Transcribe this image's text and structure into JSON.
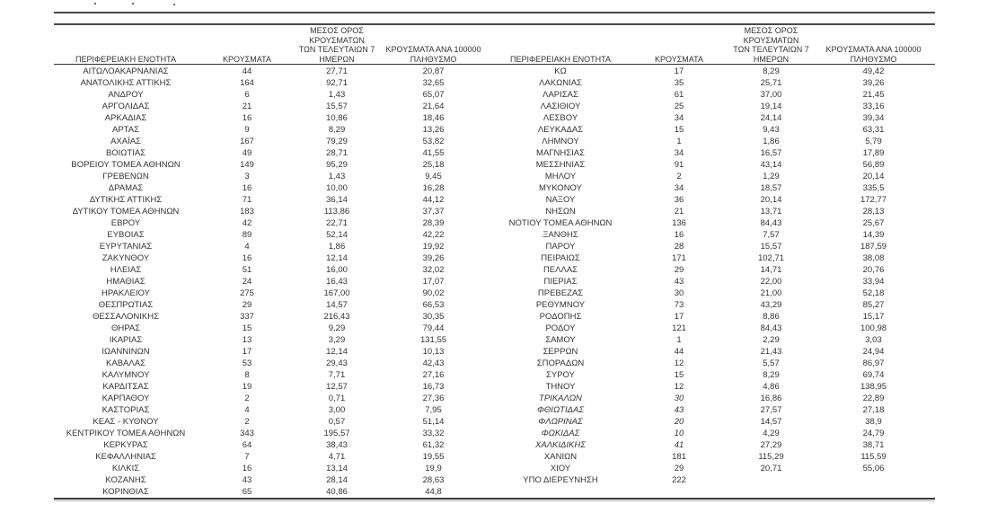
{
  "page": {
    "background": "#ffffff",
    "text_color": "#333333",
    "rule_color": "#4a4a4a"
  },
  "header": {
    "col_region": "ΠΕΡΙΦΕΡΕΙΑΚΗ ΕΝΟΤΗΤΑ",
    "col_cases": "ΚΡΟΥΣΜΑΤΑ",
    "col_avg7_lines": [
      "ΜΕΣΟΣ ΟΡΟΣ ΚΡΟΥΣΜΑΤΩΝ",
      "ΤΩΝ ΤΕΛΕΥΤΑΙΩΝ 7",
      "ΗΜΕΡΩΝ"
    ],
    "col_per100k_lines": [
      "ΚΡΟΥΣΜΑΤΑ ΑΝΑ 100000",
      "ΠΛΗΘΥΣΜΟ"
    ]
  },
  "left_table": {
    "rows": [
      {
        "region": "ΑΙΤΩΛΟΑΚΑΡΝΑΝΙΑΣ",
        "cases": "44",
        "avg7": "27,71",
        "per100k": "20,87"
      },
      {
        "region": "ΑΝΑΤΟΛΙΚΗΣ ΑΤΤΙΚΗΣ",
        "cases": "164",
        "avg7": "92,71",
        "per100k": "32,65"
      },
      {
        "region": "ΑΝΔΡΟΥ",
        "cases": "6",
        "avg7": "1,43",
        "per100k": "65,07"
      },
      {
        "region": "ΑΡΓΟΛΙΔΑΣ",
        "cases": "21",
        "avg7": "15,57",
        "per100k": "21,64"
      },
      {
        "region": "ΑΡΚΑΔΙΑΣ",
        "cases": "16",
        "avg7": "10,86",
        "per100k": "18,46"
      },
      {
        "region": "ΑΡΤΑΣ",
        "cases": "9",
        "avg7": "8,29",
        "per100k": "13,26"
      },
      {
        "region": "ΑΧΑΪΑΣ",
        "cases": "167",
        "avg7": "79,29",
        "per100k": "53,82"
      },
      {
        "region": "ΒΟΙΩΤΙΑΣ",
        "cases": "49",
        "avg7": "28,71",
        "per100k": "41,55"
      },
      {
        "region": "ΒΟΡΕΙΟΥ ΤΟΜΕΑ ΑΘΗΝΩΝ",
        "cases": "149",
        "avg7": "95,29",
        "per100k": "25,18"
      },
      {
        "region": "ΓΡΕΒΕΝΩΝ",
        "cases": "3",
        "avg7": "1,43",
        "per100k": "9,45"
      },
      {
        "region": "ΔΡΑΜΑΣ",
        "cases": "16",
        "avg7": "10,00",
        "per100k": "16,28"
      },
      {
        "region": "ΔΥΤΙΚΗΣ ΑΤΤΙΚΗΣ",
        "cases": "71",
        "avg7": "36,14",
        "per100k": "44,12"
      },
      {
        "region": "ΔΥΤΙΚΟΥ ΤΟΜΕΑ ΑΘΗΝΩΝ",
        "cases": "183",
        "avg7": "113,86",
        "per100k": "37,37"
      },
      {
        "region": "ΕΒΡΟΥ",
        "cases": "42",
        "avg7": "22,71",
        "per100k": "28,39"
      },
      {
        "region": "ΕΥΒΟΙΑΣ",
        "cases": "89",
        "avg7": "52,14",
        "per100k": "42,22"
      },
      {
        "region": "ΕΥΡΥΤΑΝΙΑΣ",
        "cases": "4",
        "avg7": "1,86",
        "per100k": "19,92"
      },
      {
        "region": "ΖΑΚΥΝΘΟΥ",
        "cases": "16",
        "avg7": "12,14",
        "per100k": "39,26"
      },
      {
        "region": "ΗΛΕΙΑΣ",
        "cases": "51",
        "avg7": "16,00",
        "per100k": "32,02"
      },
      {
        "region": "ΗΜΑΘΙΑΣ",
        "cases": "24",
        "avg7": "16,43",
        "per100k": "17,07"
      },
      {
        "region": "ΗΡΑΚΛΕΙΟΥ",
        "cases": "275",
        "avg7": "167,00",
        "per100k": "90,02"
      },
      {
        "region": "ΘΕΣΠΡΩΤΙΑΣ",
        "cases": "29",
        "avg7": "14,57",
        "per100k": "66,53"
      },
      {
        "region": "ΘΕΣΣΑΛΟΝΙΚΗΣ",
        "cases": "337",
        "avg7": "216,43",
        "per100k": "30,35"
      },
      {
        "region": "ΘΗΡΑΣ",
        "cases": "15",
        "avg7": "9,29",
        "per100k": "79,44"
      },
      {
        "region": "ΙΚΑΡΙΑΣ",
        "cases": "13",
        "avg7": "3,29",
        "per100k": "131,55"
      },
      {
        "region": "ΙΩΑΝΝΙΝΩΝ",
        "cases": "17",
        "avg7": "12,14",
        "per100k": "10,13"
      },
      {
        "region": "ΚΑΒΑΛΑΣ",
        "cases": "53",
        "avg7": "29,43",
        "per100k": "42,43"
      },
      {
        "region": "ΚΑΛΥΜΝΟΥ",
        "cases": "8",
        "avg7": "7,71",
        "per100k": "27,16"
      },
      {
        "region": "ΚΑΡΔΙΤΣΑΣ",
        "cases": "19",
        "avg7": "12,57",
        "per100k": "16,73"
      },
      {
        "region": "ΚΑΡΠΑΘΟΥ",
        "cases": "2",
        "avg7": "0,71",
        "per100k": "27,36"
      },
      {
        "region": "ΚΑΣΤΟΡΙΑΣ",
        "cases": "4",
        "avg7": "3,00",
        "per100k": "7,95"
      },
      {
        "region": "ΚΕΑΣ - ΚΥΘΝΟΥ",
        "cases": "2",
        "avg7": "0,57",
        "per100k": "51,14"
      },
      {
        "region": "ΚΕΝΤΡΙΚΟΥ ΤΟΜΕΑ ΑΘΗΝΩΝ",
        "cases": "343",
        "avg7": "195,57",
        "per100k": "33,32"
      },
      {
        "region": "ΚΕΡΚΥΡΑΣ",
        "cases": "64",
        "avg7": "38,43",
        "per100k": "61,32"
      },
      {
        "region": "ΚΕΦΑΛΛΗΝΙΑΣ",
        "cases": "7",
        "avg7": "4,71",
        "per100k": "19,55"
      },
      {
        "region": "ΚΙΛΚΙΣ",
        "cases": "16",
        "avg7": "13,14",
        "per100k": "19,9"
      },
      {
        "region": "ΚΟΖΑΝΗΣ",
        "cases": "43",
        "avg7": "28,14",
        "per100k": "28,63"
      },
      {
        "region": "ΚΟΡΙΝΘΙΑΣ",
        "cases": "65",
        "avg7": "40,86",
        "per100k": "44,8"
      }
    ]
  },
  "right_table": {
    "rows": [
      {
        "region": "ΚΩ",
        "cases": "17",
        "avg7": "8,29",
        "per100k": "49,42"
      },
      {
        "region": "ΛΑΚΩΝΙΑΣ",
        "cases": "35",
        "avg7": "25,71",
        "per100k": "39,26"
      },
      {
        "region": "ΛΑΡΙΣΑΣ",
        "cases": "61",
        "avg7": "37,00",
        "per100k": "21,45"
      },
      {
        "region": "ΛΑΣΙΘΙΟΥ",
        "cases": "25",
        "avg7": "19,14",
        "per100k": "33,16"
      },
      {
        "region": "ΛΕΣΒΟΥ",
        "cases": "34",
        "avg7": "24,14",
        "per100k": "39,34"
      },
      {
        "region": "ΛΕΥΚΑΔΑΣ",
        "cases": "15",
        "avg7": "9,43",
        "per100k": "63,31"
      },
      {
        "region": "ΛΗΜΝΟΥ",
        "cases": "1",
        "avg7": "1,86",
        "per100k": "5,79"
      },
      {
        "region": "ΜΑΓΝΗΣΙΑΣ",
        "cases": "34",
        "avg7": "16,57",
        "per100k": "17,89"
      },
      {
        "region": "ΜΕΣΣΗΝΙΑΣ",
        "cases": "91",
        "avg7": "43,14",
        "per100k": "56,89"
      },
      {
        "region": "ΜΗΛΟΥ",
        "cases": "2",
        "avg7": "1,29",
        "per100k": "20,14"
      },
      {
        "region": "ΜΥΚΟΝΟΥ",
        "cases": "34",
        "avg7": "18,57",
        "per100k": "335,5"
      },
      {
        "region": "ΝΑΞΟΥ",
        "cases": "36",
        "avg7": "20,14",
        "per100k": "172,77"
      },
      {
        "region": "ΝΗΣΩΝ",
        "cases": "21",
        "avg7": "13,71",
        "per100k": "28,13"
      },
      {
        "region": "ΝΟΤΙΟΥ ΤΟΜΕΑ ΑΘΗΝΩΝ",
        "cases": "136",
        "avg7": "84,43",
        "per100k": "25,67"
      },
      {
        "region": "ΞΑΝΘΗΣ",
        "cases": "16",
        "avg7": "7,57",
        "per100k": "14,39"
      },
      {
        "region": "ΠΑΡΟΥ",
        "cases": "28",
        "avg7": "15,57",
        "per100k": "187,59"
      },
      {
        "region": "ΠΕΙΡΑΙΩΣ",
        "cases": "171",
        "avg7": "102,71",
        "per100k": "38,08"
      },
      {
        "region": "ΠΕΛΛΑΣ",
        "cases": "29",
        "avg7": "14,71",
        "per100k": "20,76"
      },
      {
        "region": "ΠΙΕΡΙΑΣ",
        "cases": "43",
        "avg7": "22,00",
        "per100k": "33,94"
      },
      {
        "region": "ΠΡΕΒΕΖΑΣ",
        "cases": "30",
        "avg7": "21,00",
        "per100k": "52,18"
      },
      {
        "region": "ΡΕΘΥΜΝΟΥ",
        "cases": "73",
        "avg7": "43,29",
        "per100k": "85,27"
      },
      {
        "region": "ΡΟΔΟΠΗΣ",
        "cases": "17",
        "avg7": "8,86",
        "per100k": "15,17"
      },
      {
        "region": "ΡΟΔΟΥ",
        "cases": "121",
        "avg7": "84,43",
        "per100k": "100,98"
      },
      {
        "region": "ΣΑΜΟΥ",
        "cases": "1",
        "avg7": "2,29",
        "per100k": "3,03"
      },
      {
        "region": "ΣΕΡΡΩΝ",
        "cases": "44",
        "avg7": "21,43",
        "per100k": "24,94"
      },
      {
        "region": "ΣΠΟΡΑΔΩΝ",
        "cases": "12",
        "avg7": "5,57",
        "per100k": "86,97"
      },
      {
        "region": "ΣΥΡΟΥ",
        "cases": "15",
        "avg7": "8,29",
        "per100k": "69,74"
      },
      {
        "region": "ΤΗΝΟΥ",
        "cases": "12",
        "avg7": "4,86",
        "per100k": "138,95"
      },
      {
        "region": "ΤΡΙΚΑΛΩΝ",
        "cases": "30",
        "avg7": "16,86",
        "per100k": "22,89",
        "italic": true
      },
      {
        "region": "ΦΘΙΩΤΙΔΑΣ",
        "cases": "43",
        "avg7": "27,57",
        "per100k": "27,18",
        "italic": true
      },
      {
        "region": "ΦΛΩΡΙΝΑΣ",
        "cases": "20",
        "avg7": "14,57",
        "per100k": "38,9",
        "italic": true
      },
      {
        "region": "ΦΩΚΙΔΑΣ",
        "cases": "10",
        "avg7": "4,29",
        "per100k": "24,79",
        "italic": true
      },
      {
        "region": "ΧΑΛΚΙΔΙΚΗΣ",
        "cases": "41",
        "avg7": "27,29",
        "per100k": "38,71",
        "italic": true
      },
      {
        "region": "ΧΑΝΙΩΝ",
        "cases": "181",
        "avg7": "115,29",
        "per100k": "115,59"
      },
      {
        "region": "ΧΙΟΥ",
        "cases": "29",
        "avg7": "20,71",
        "per100k": "55,06"
      },
      {
        "region": "ΥΠΟ ΔΙΕΡΕΥΝΗΣΗ",
        "cases": "222",
        "avg7": "",
        "per100k": ""
      }
    ]
  }
}
